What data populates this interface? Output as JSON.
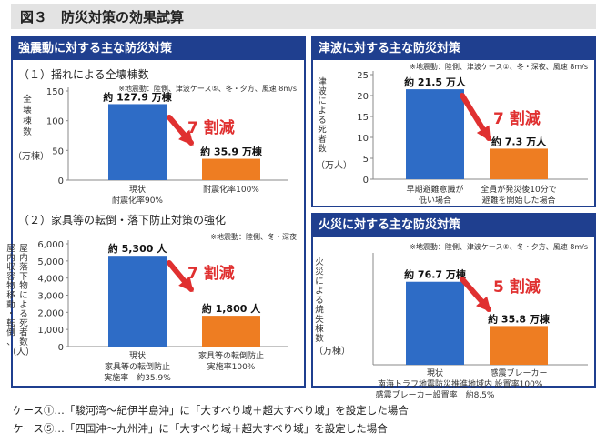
{
  "figure": {
    "title": "図３　防災対策の効果試算"
  },
  "colors": {
    "frame": "#1f3f8f",
    "bar_before": "#2e6cc6",
    "bar_after": "#ee7d22",
    "arrow": "#e03030",
    "reduction": "#e03030"
  },
  "panels": {
    "earthquake": {
      "header": "強震動に対する主な防災対策",
      "sections": [
        {
          "subtitle": "（１）揺れによる全壊棟数"
        },
        {
          "subtitle": "（２）家具等の転倒・落下防止対策の強化"
        }
      ]
    },
    "tsunami": {
      "header": "津波に対する主な防災対策"
    },
    "fire": {
      "header": "火災に対する主な防災対策"
    }
  },
  "chart_data": [
    {
      "type": "bar",
      "title": "（１）揺れによる全壊棟数",
      "note": "※地震動：陸側、津波ケース⑤、冬・夕方、風速 8m/s",
      "ylabel": "全壊棟数",
      "yunit": "（万棟）",
      "ylim": [
        0,
        150
      ],
      "yticks": [
        "0",
        "50",
        "100",
        "150"
      ],
      "categories": [
        [
          "現状",
          "耐震化率90%"
        ],
        [
          "耐震化率100%"
        ]
      ],
      "values": [
        127.9,
        35.9
      ],
      "data_labels": [
        "約 127.9 万棟",
        "約 35.9 万棟"
      ],
      "reduction": "7 割減"
    },
    {
      "type": "bar",
      "title": "（２）家具等の転倒・落下防止対策の強化",
      "note": "※地震動：陸側、冬・深夜",
      "ylabel": "屋内収容物移動・転倒、屋内落下物による死者数",
      "yunit": "（人）",
      "ylim": [
        0,
        6000
      ],
      "yticks": [
        "0",
        "1,000",
        "2,000",
        "3,000",
        "4,000",
        "5,000",
        "6,000"
      ],
      "categories": [
        [
          "現状",
          "家具等の転倒防止",
          "実施率　約35.9%"
        ],
        [
          "家具等の転倒防止",
          "実施率100%"
        ]
      ],
      "values": [
        5300,
        1800
      ],
      "data_labels": [
        "約 5,300 人",
        "約 1,800 人"
      ],
      "reduction": "7 割減"
    },
    {
      "type": "bar",
      "title": "津波に対する主な防災対策",
      "note": "※地震動：陸側、津波ケース①、冬・深夜、風速 8m/s",
      "ylabel": "津波による死者数",
      "yunit": "（万人）",
      "ylim": [
        0,
        25
      ],
      "yticks": [
        "0",
        "5",
        "10",
        "15",
        "20",
        "25"
      ],
      "categories": [
        [
          "早期避難意識が",
          "低い場合"
        ],
        [
          "全員が発災後10分で",
          "避難を開始した場合"
        ]
      ],
      "values": [
        21.5,
        7.3
      ],
      "data_labels": [
        "約 21.5 万人",
        "約 7.3 万人"
      ],
      "reduction": "7 割減"
    },
    {
      "type": "bar",
      "title": "火災に対する主な防災対策",
      "note": "※地震動：陸側、津波ケース⑤、冬・夕方、風速 8m/s",
      "ylabel": "火災による焼失棟数",
      "yunit": "（万棟）",
      "ylim": [
        0,
        100
      ],
      "yticks": [],
      "categories": [
        [
          "現状",
          "南海トラフ地震防災推進地域内",
          "感震ブレーカー設置率　約8.5%"
        ],
        [
          "感震ブレーカー",
          "設置率100%"
        ]
      ],
      "values": [
        76.7,
        35.8
      ],
      "data_labels": [
        "約 76.7 万棟",
        "約 35.8 万棟"
      ],
      "reduction": "5 割減"
    }
  ],
  "footnotes": [
    "ケース①…「駿河湾～紀伊半島沖」に「大すべり域＋超大すべり域」を設定した場合",
    "ケース⑤…「四国沖～九州沖」に「大すべり域＋超大すべり域」を設定した場合"
  ]
}
